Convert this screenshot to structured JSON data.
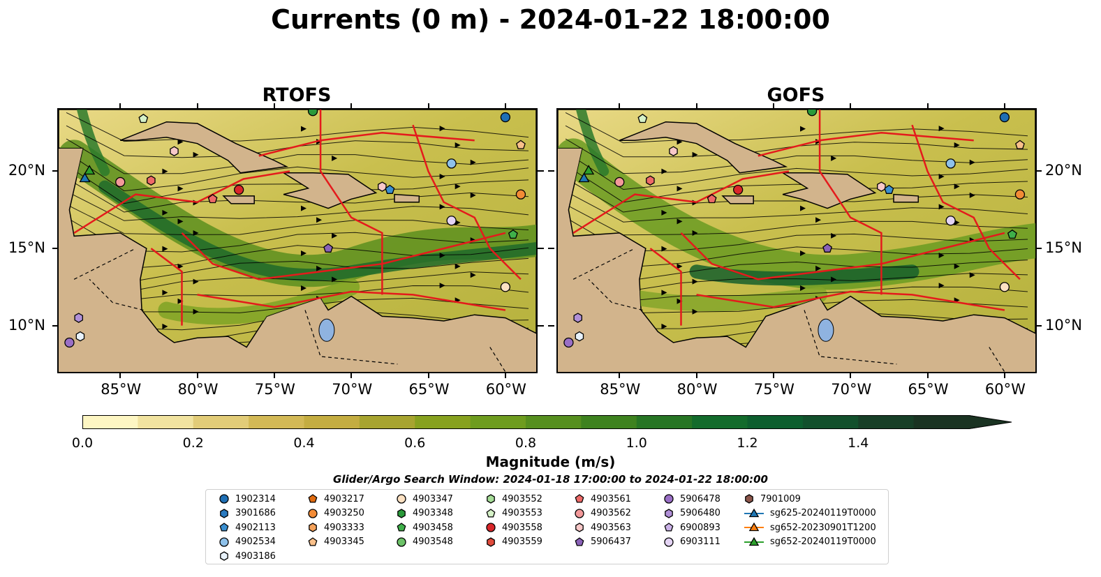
{
  "title": "Currents (0 m) - 2024-01-22 18:00:00",
  "panels": [
    {
      "title": "RTOFS"
    },
    {
      "title": "GOFS"
    }
  ],
  "axes": {
    "lon_ticks": [
      "85°W",
      "80°W",
      "75°W",
      "70°W",
      "65°W",
      "60°W"
    ],
    "lat_ticks": [
      "20°N",
      "15°N",
      "10°N"
    ]
  },
  "colorbar": {
    "label": "Magnitude (m/s)",
    "ticks": [
      "0.0",
      "0.2",
      "0.4",
      "0.6",
      "0.8",
      "1.0",
      "1.2",
      "1.4"
    ],
    "colors": [
      "#fdf6c3",
      "#f1e3a0",
      "#e2cc78",
      "#d3b956",
      "#c4ad41",
      "#a7a430",
      "#87a11f",
      "#6e9c1f",
      "#568f1f",
      "#3e821f",
      "#277524",
      "#136b2c",
      "#0d5e2e",
      "#12502c",
      "#173f27",
      "#1a3322"
    ]
  },
  "search_window": "Glider/Argo Search Window: 2024-01-18 17:00:00 to 2024-01-22 18:00:00",
  "legend": {
    "items": [
      {
        "label": "1902314",
        "marker": "circle",
        "color": "#1f6fb4"
      },
      {
        "label": "3901686",
        "marker": "hexagon",
        "color": "#2a7ac0"
      },
      {
        "label": "4902113",
        "marker": "pentagon",
        "color": "#3a8fd0"
      },
      {
        "label": "4902534",
        "marker": "circle",
        "color": "#8ec1ea"
      },
      {
        "label": "4903186",
        "marker": "hexagon",
        "color": "#e8f2fb"
      },
      {
        "label": "4903217",
        "marker": "pentagon",
        "color": "#e06b10"
      },
      {
        "label": "4903250",
        "marker": "circle",
        "color": "#f28b36"
      },
      {
        "label": "4903333",
        "marker": "hexagon",
        "color": "#f5a25a"
      },
      {
        "label": "4903345",
        "marker": "pentagon",
        "color": "#f9c08a"
      },
      {
        "label": "4903347",
        "marker": "circle",
        "color": "#fde1c2"
      },
      {
        "label": "4903348",
        "marker": "hexagon",
        "color": "#2a9a3a"
      },
      {
        "label": "4903458",
        "marker": "pentagon",
        "color": "#3fb04a"
      },
      {
        "label": "4903548",
        "marker": "circle",
        "color": "#6cc268"
      },
      {
        "label": "4903552",
        "marker": "hexagon",
        "color": "#a6dd98"
      },
      {
        "label": "4903553",
        "marker": "pentagon",
        "color": "#d6f2c8"
      },
      {
        "label": "4903558",
        "marker": "circle",
        "color": "#d9262a"
      },
      {
        "label": "4903559",
        "marker": "hexagon",
        "color": "#e04b3c"
      },
      {
        "label": "4903561",
        "marker": "pentagon",
        "color": "#ee6a68"
      },
      {
        "label": "4903562",
        "marker": "circle",
        "color": "#f3999a"
      },
      {
        "label": "4903563",
        "marker": "hexagon",
        "color": "#f8c8c8"
      },
      {
        "label": "5906437",
        "marker": "pentagon",
        "color": "#8a62b8"
      },
      {
        "label": "5906478",
        "marker": "circle",
        "color": "#9a6fc6"
      },
      {
        "label": "5906480",
        "marker": "hexagon",
        "color": "#b190d8"
      },
      {
        "label": "6900893",
        "marker": "pentagon",
        "color": "#cbb2e8"
      },
      {
        "label": "6903111",
        "marker": "circle",
        "color": "#e4d4f4"
      },
      {
        "label": "7901009",
        "marker": "hexagon",
        "color": "#8c564b"
      },
      {
        "label": "sg625-20240119T0000",
        "marker": "triangle",
        "color": "#1f77b4"
      },
      {
        "label": "sg652-20230901T1200",
        "marker": "triangle",
        "color": "#ff7f0e"
      },
      {
        "label": "sg652-20240119T0000",
        "marker": "triangle",
        "color": "#2ca02c"
      }
    ]
  }
}
